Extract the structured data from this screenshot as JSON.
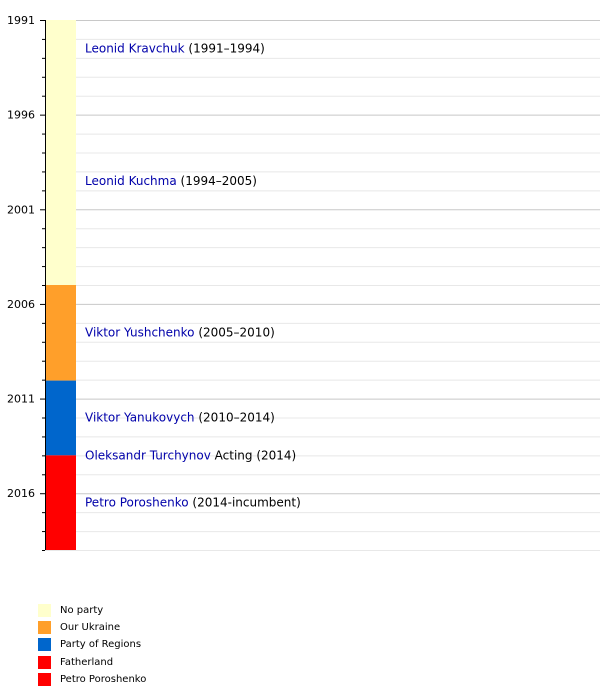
{
  "chart_data": {
    "type": "bar",
    "orientation": "vertical-timeline",
    "y_axis": {
      "min": 1991,
      "max": 2019,
      "ticks": [
        1991,
        1996,
        2001,
        2006,
        2011,
        2016
      ],
      "grid": true,
      "reversed": true
    },
    "segments": [
      {
        "party": "No party",
        "color": "#ffffcc",
        "start": 1991.0,
        "end": 2005.0
      },
      {
        "party": "Our Ukraine",
        "color": "#ff9f2a",
        "start": 2005.0,
        "end": 2010.05
      },
      {
        "party": "Party of Regions",
        "color": "#0066cc",
        "start": 2010.05,
        "end": 2014.0
      },
      {
        "party": "Fatherland",
        "color": "#ff0000",
        "start": 2014.0,
        "end": 2019.0
      }
    ],
    "presidents": [
      {
        "name": "Leonid Kravchuk",
        "note": " (1991–1994)",
        "y": 1992.5
      },
      {
        "name": "Leonid Kuchma",
        "note": " (1994–2005)",
        "y": 1999.5
      },
      {
        "name": "Viktor Yushchenko",
        "note": " (2005–2010)",
        "y": 2007.5
      },
      {
        "name": "Viktor Yanukovych",
        "note": " (2010–2014)",
        "y": 2012.0
      },
      {
        "name": "Oleksandr Turchynov",
        "note": " Acting (2014)",
        "y": 2014.0
      },
      {
        "name": "Petro Poroshenko",
        "note": " (2014-incumbent)",
        "y": 2016.5
      }
    ],
    "legend": [
      {
        "label": "No party",
        "color": "#ffffcc"
      },
      {
        "label": "Our Ukraine",
        "color": "#ff9f2a"
      },
      {
        "label": "Party of Regions",
        "color": "#0066cc"
      },
      {
        "label": "Fatherland",
        "color": "#ff0000"
      },
      {
        "label": "Petro Poroshenko",
        "color": "#ff0000"
      }
    ],
    "colors": {
      "link": "#0000aa",
      "grid_major": "#c8c8c8",
      "grid_minor": "#e8e8e8",
      "axis": "#000000"
    }
  }
}
